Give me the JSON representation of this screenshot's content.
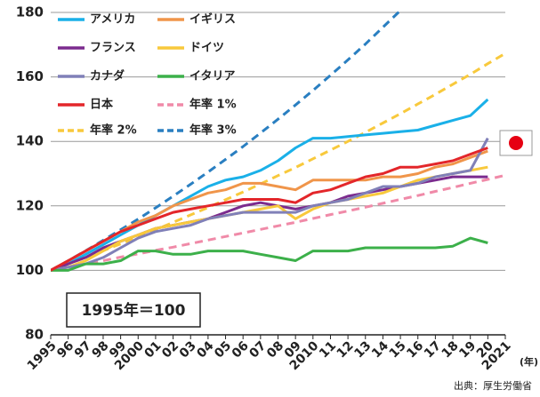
{
  "chart_data": {
    "type": "line",
    "x": [
      1995,
      1996,
      1997,
      1998,
      1999,
      2000,
      2001,
      2002,
      2003,
      2004,
      2005,
      2006,
      2007,
      2008,
      2009,
      2010,
      2011,
      2012,
      2013,
      2014,
      2015,
      2016,
      2017,
      2018,
      2019,
      2020,
      2021
    ],
    "xlim": [
      1995,
      2021
    ],
    "xticks": [
      1995,
      {
        "value": 1996,
        "label": "96"
      },
      {
        "value": 1997,
        "label": "97"
      },
      {
        "value": 1998,
        "label": "98"
      },
      {
        "value": 1999,
        "label": "99"
      },
      2000,
      {
        "value": 2001,
        "label": "01"
      },
      {
        "value": 2002,
        "label": "02"
      },
      {
        "value": 2003,
        "label": "03"
      },
      {
        "value": 2004,
        "label": "04"
      },
      {
        "value": 2005,
        "label": "05"
      },
      {
        "value": 2006,
        "label": "06"
      },
      {
        "value": 2007,
        "label": "07"
      },
      {
        "value": 2008,
        "label": "08"
      },
      {
        "value": 2009,
        "label": "09"
      },
      2010,
      {
        "value": 2011,
        "label": "11"
      },
      {
        "value": 2012,
        "label": "12"
      },
      {
        "value": 2013,
        "label": "13"
      },
      {
        "value": 2014,
        "label": "14"
      },
      {
        "value": 2015,
        "label": "15"
      },
      {
        "value": 2016,
        "label": "16"
      },
      {
        "value": 2017,
        "label": "17"
      },
      {
        "value": 2018,
        "label": "18"
      },
      {
        "value": 2019,
        "label": "19"
      },
      {
        "value": 2020,
        "label": "20"
      },
      2021
    ],
    "x_label": "(年)",
    "ylim": [
      80,
      180
    ],
    "yticks": [
      80,
      100,
      120,
      140,
      160,
      180
    ],
    "grid": true,
    "annotation": "1995年＝100",
    "source": "出典：厚生労働省",
    "series": [
      {
        "name": "アメリカ",
        "color": "#1ab0e8",
        "values": [
          100,
          102,
          105,
          108,
          111,
          114,
          117,
          120,
          123,
          126,
          128,
          129,
          131,
          134,
          138,
          141,
          141,
          141.5,
          142,
          142.5,
          143,
          143.5,
          145,
          146.5,
          148,
          153,
          null
        ]
      },
      {
        "name": "イギリス",
        "color": "#f0954a",
        "values": [
          100,
          103,
          106,
          109,
          112,
          115,
          117,
          120,
          122,
          124,
          125,
          127,
          127,
          126,
          125,
          128,
          128,
          128,
          128,
          129,
          129,
          130,
          132,
          133,
          135,
          137,
          null
        ]
      },
      {
        "name": "フランス",
        "color": "#7b2b8e",
        "values": [
          100,
          102,
          104,
          107,
          109,
          111,
          113,
          114,
          115,
          116,
          118,
          120,
          121,
          120,
          119,
          120,
          121,
          123,
          124,
          125,
          126,
          127,
          128,
          129,
          129,
          129,
          null
        ]
      },
      {
        "name": "ドイツ",
        "color": "#f8c93c",
        "values": [
          100,
          101,
          103,
          106,
          109,
          111,
          113,
          114,
          115,
          116,
          117,
          118,
          119,
          120,
          116,
          119,
          121,
          122,
          123,
          124,
          126,
          128,
          129,
          130,
          131,
          132,
          null
        ]
      },
      {
        "name": "カナダ",
        "color": "#8080b8",
        "values": [
          100,
          101,
          102,
          104,
          107,
          110,
          112,
          113,
          114,
          116,
          117,
          118,
          118,
          118,
          118,
          120,
          121,
          122,
          124,
          126,
          126,
          127,
          129,
          130,
          131,
          141,
          null
        ]
      },
      {
        "name": "イタリア",
        "color": "#3cb04a",
        "values": [
          100,
          100,
          102,
          102,
          103,
          106,
          106,
          105,
          105,
          106,
          106,
          106,
          105,
          104,
          103,
          106,
          106,
          106,
          107,
          107,
          107,
          107,
          107,
          107.5,
          110,
          108.5,
          null
        ]
      },
      {
        "name": "日本",
        "color": "#e3262a",
        "values": [
          100,
          103,
          106,
          109,
          112,
          114,
          116,
          118,
          119,
          120,
          121,
          122,
          122,
          122,
          121,
          124,
          125,
          127,
          129,
          130,
          132,
          132,
          133,
          134,
          136,
          138,
          null
        ]
      },
      {
        "name": "年率 1%",
        "color": "#f08aa8",
        "dashed": true,
        "values": [
          100,
          101,
          102,
          103,
          104.1,
          105.1,
          106.2,
          107.2,
          108.3,
          109.4,
          110.5,
          111.6,
          112.7,
          113.8,
          114.9,
          116.1,
          117.3,
          118.4,
          119.6,
          120.8,
          122,
          123.2,
          124.5,
          125.7,
          127,
          128.2,
          129.5
        ]
      },
      {
        "name": "年率 2%",
        "color": "#f8c93c",
        "dashed": true,
        "values": [
          100,
          102,
          104,
          106.1,
          108.2,
          110.4,
          112.6,
          114.9,
          117.2,
          119.5,
          121.9,
          124.3,
          126.8,
          129.4,
          131.9,
          134.6,
          137.3,
          140,
          142.8,
          145.7,
          148.6,
          151.6,
          154.6,
          157.7,
          160.8,
          164.1,
          167.3
        ]
      },
      {
        "name": "年率 3%",
        "color": "#2a7fc1",
        "dashed": true,
        "values": [
          100,
          103,
          106.1,
          109.3,
          112.6,
          115.9,
          119.4,
          123,
          126.7,
          130.5,
          134.4,
          138.4,
          142.6,
          146.9,
          151.3,
          155.8,
          160.5,
          165.3,
          170.2,
          175.4,
          180.6,
          null,
          null,
          null,
          null,
          null,
          null
        ]
      }
    ]
  }
}
